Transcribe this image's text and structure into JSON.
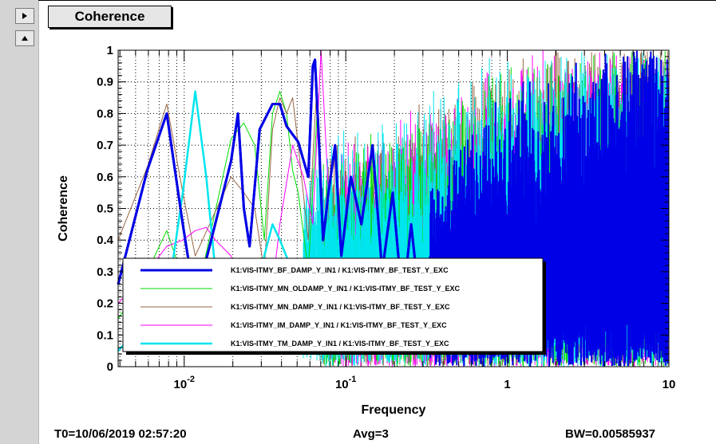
{
  "nav": {
    "right_arrow_icon": "triangle-right-icon",
    "up_arrow_icon": "triangle-up-icon"
  },
  "title_box": {
    "label": "Coherence"
  },
  "footer": {
    "t0": "T0=10/06/2019 02:57:20",
    "avg": "Avg=3",
    "bw": "BW=0.00585937"
  },
  "chart_data": {
    "type": "line",
    "xlabel": "Frequency",
    "ylabel": "Coherence",
    "xscale": "log",
    "xlim": [
      0.0039,
      10
    ],
    "ylim": [
      0,
      1
    ],
    "grid": true,
    "legend_position": "bottom-center",
    "yticks": [
      "0",
      "0.1",
      "0.2",
      "0.3",
      "0.4",
      "0.5",
      "0.6",
      "0.7",
      "0.8",
      "0.9",
      "1"
    ],
    "xticks": [
      {
        "base": "10",
        "exp": "-2"
      },
      {
        "base": "10",
        "exp": "-1"
      },
      {
        "base": "1",
        "exp": ""
      },
      {
        "base": "10",
        "exp": ""
      }
    ],
    "series": [
      {
        "name": "K1:VIS-ITMY_BF_DAMP_Y_IN1 / K1:VIS-ITMY_BF_TEST_Y_EXC",
        "color": "#0000e6",
        "width": 3,
        "x": [
          0.0039,
          0.0059,
          0.0078,
          0.0098,
          0.0117,
          0.0195,
          0.0215,
          0.0234,
          0.0254,
          0.0293,
          0.0352,
          0.0391,
          0.043,
          0.0508,
          0.0586,
          0.0625,
          0.0645,
          0.0684,
          0.0723,
          0.0781,
          0.0859,
          0.0938,
          0.1074,
          0.125,
          0.1465,
          0.168,
          0.1953,
          0.2246,
          0.2539,
          0.293,
          0.334
        ],
        "y": [
          0.26,
          0.62,
          0.8,
          0.45,
          0.2,
          0.65,
          0.8,
          0.5,
          0.38,
          0.75,
          0.83,
          0.83,
          0.76,
          0.71,
          0.6,
          0.95,
          0.97,
          0.7,
          0.4,
          0.55,
          0.7,
          0.35,
          0.6,
          0.45,
          0.7,
          0.3,
          0.55,
          0.2,
          0.45,
          0.15,
          0.35
        ]
      },
      {
        "name": "K1:VIS-ITMY_MN_OLDAMP_Y_IN1 / K1:VIS-ITMY_BF_TEST_Y_EXC",
        "color": "#00dd00",
        "width": 1,
        "x": [
          0.0039,
          0.0059,
          0.0078,
          0.0098,
          0.0117,
          0.0195,
          0.0234,
          0.0273,
          0.0313,
          0.0352,
          0.0391,
          0.043,
          0.0469,
          0.0508,
          0.0586,
          0.0664,
          0.0723
        ],
        "y": [
          0.15,
          0.3,
          0.43,
          0.28,
          0.2,
          0.72,
          0.77,
          0.7,
          0.4,
          0.8,
          0.87,
          0.8,
          0.62,
          0.55,
          0.3,
          0.8,
          0.45
        ]
      },
      {
        "name": "K1:VIS-ITMY_MN_DAMP_Y_IN1 / K1:VIS-ITMY_BF_TEST_Y_EXC",
        "color": "#996644",
        "width": 1,
        "x": [
          0.0039,
          0.0059,
          0.0078,
          0.0098,
          0.0117,
          0.0195,
          0.0234,
          0.0273,
          0.0313,
          0.0352,
          0.0391,
          0.043,
          0.0469,
          0.0508,
          0.0586,
          0.0664
        ],
        "y": [
          0.4,
          0.63,
          0.83,
          0.55,
          0.35,
          0.6,
          0.55,
          0.5,
          0.3,
          0.75,
          0.85,
          0.8,
          0.85,
          0.7,
          0.4,
          0.9
        ]
      },
      {
        "name": "K1:VIS-ITMY_IM_DAMP_Y_IN1 / K1:VIS-ITMY_BF_TEST_Y_EXC",
        "color": "#ff00ff",
        "width": 1,
        "x": [
          0.0039,
          0.0059,
          0.0078,
          0.0098,
          0.0117,
          0.0137,
          0.0156,
          0.0195,
          0.0234,
          0.0273,
          0.0313,
          0.0352,
          0.0391,
          0.0469,
          0.0547,
          0.0625,
          0.0703,
          0.0781
        ],
        "y": [
          0.2,
          0.3,
          0.38,
          0.4,
          0.43,
          0.44,
          0.4,
          0.35,
          0.2,
          0.3,
          0.15,
          0.25,
          0.45,
          0.7,
          0.6,
          0.45,
          1.0,
          0.55
        ]
      },
      {
        "name": "K1:VIS-ITMY_TM_DAMP_Y_IN1 / K1:VIS-ITMY_BF_TEST_Y_EXC",
        "color": "#00e5ee",
        "width": 2.5,
        "x": [
          0.0039,
          0.0059,
          0.0078,
          0.0098,
          0.0117,
          0.0137,
          0.0156,
          0.0176,
          0.0195,
          0.0215,
          0.0234,
          0.0273,
          0.0313,
          0.0352,
          0.0391,
          0.0469,
          0.0547
        ],
        "y": [
          0.05,
          0.15,
          0.2,
          0.55,
          0.87,
          0.6,
          0.3,
          0.1,
          0.05,
          0.15,
          0.1,
          0.2,
          0.35,
          0.45,
          0.4,
          0.3,
          0.25
        ]
      }
    ]
  }
}
